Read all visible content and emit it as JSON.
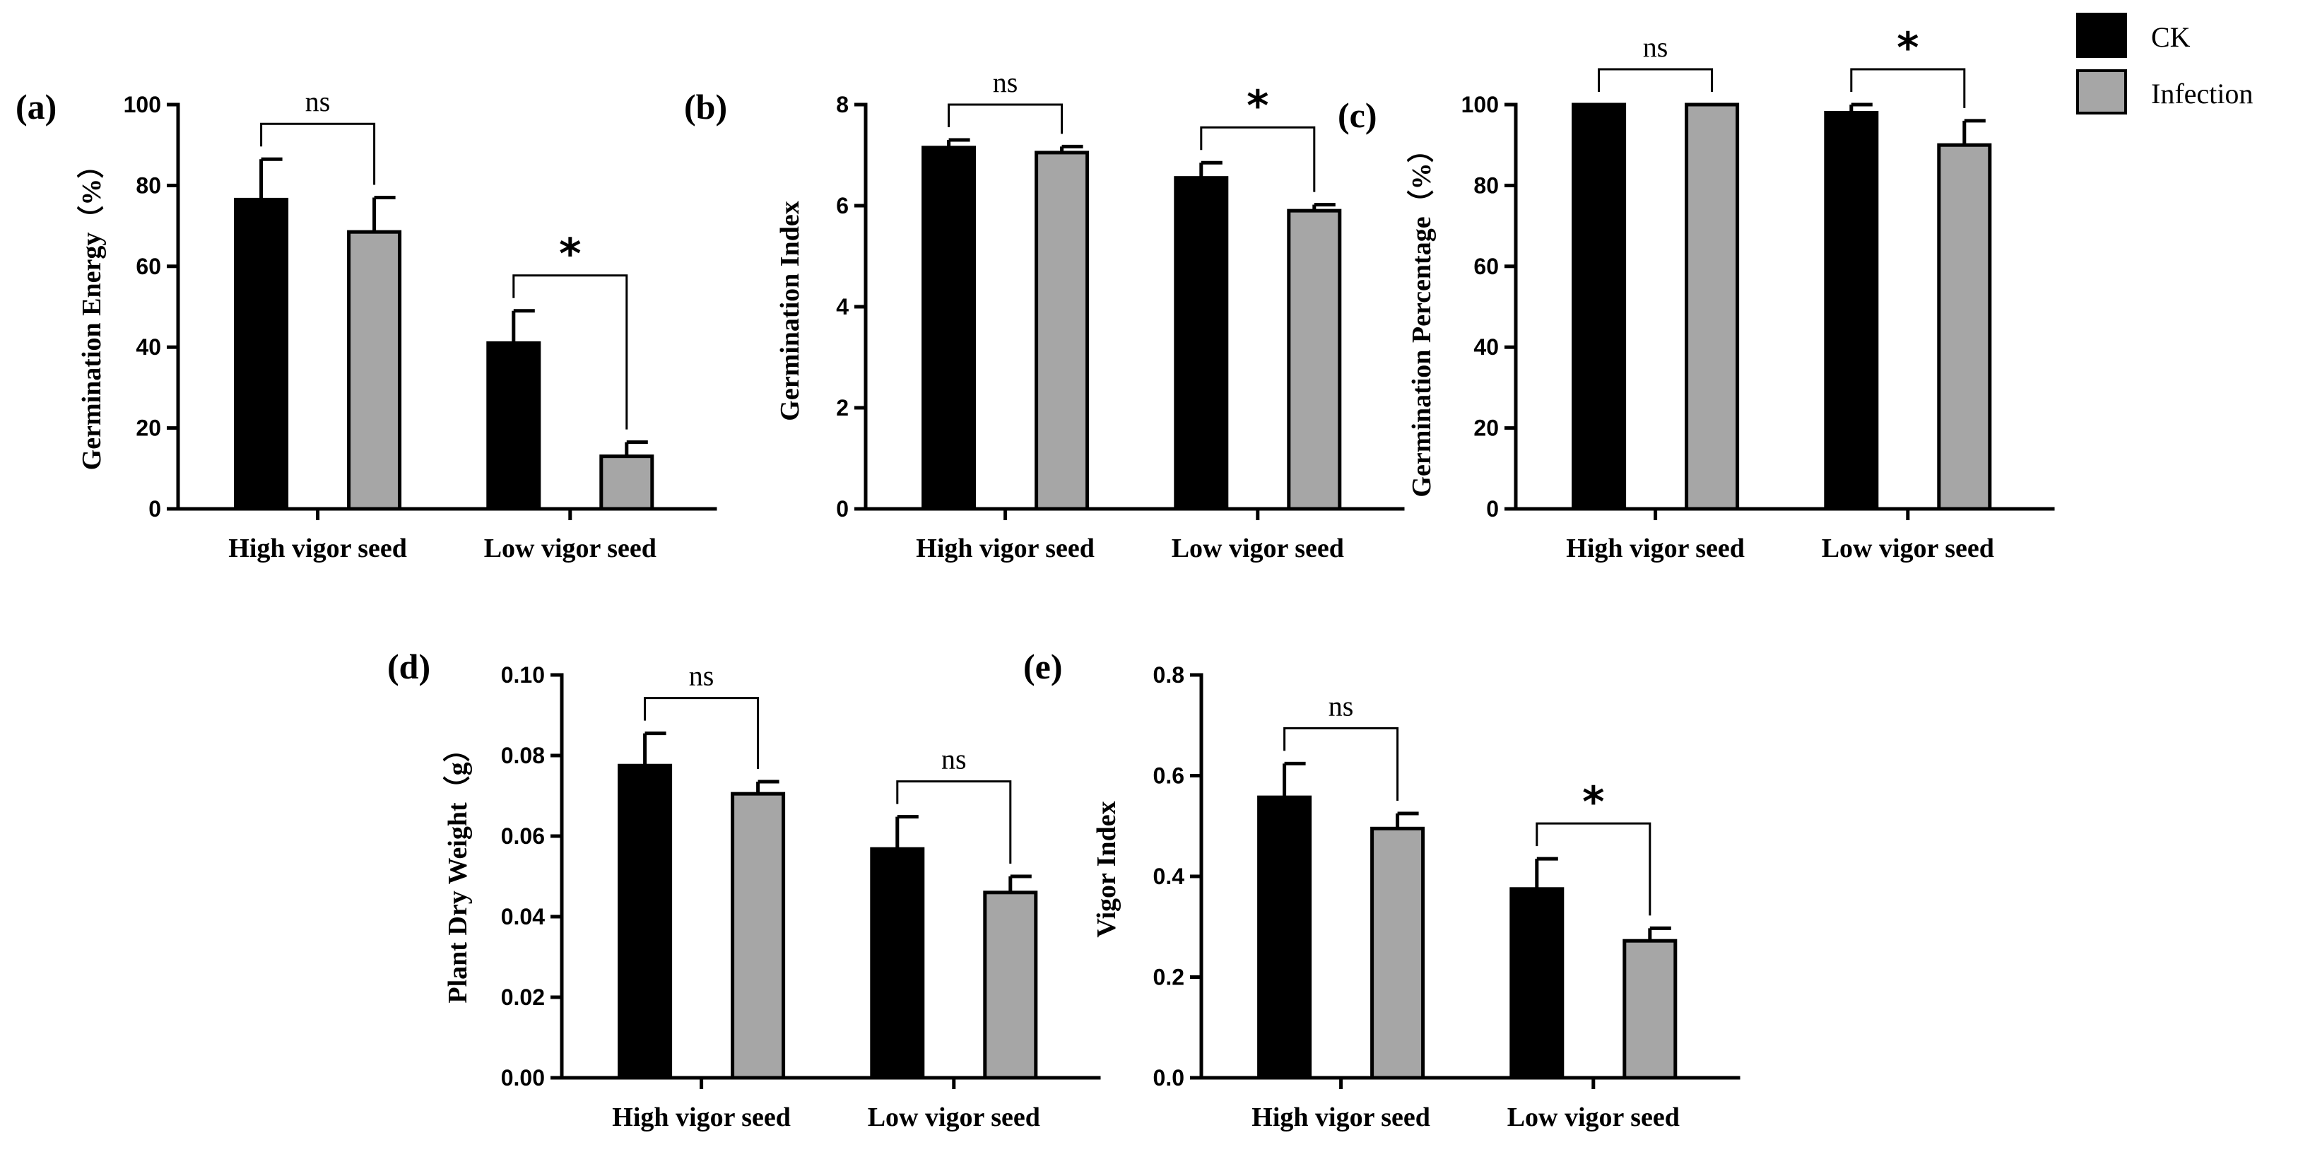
{
  "colors": {
    "ck": "#000000",
    "infection": "#a6a6a6",
    "axis": "#000000"
  },
  "legend": {
    "items": [
      {
        "label": "CK",
        "color": "#000000"
      },
      {
        "label": "Infection",
        "color": "#a6a6a6"
      }
    ]
  },
  "chart_data": [
    {
      "panel_label": "(a)",
      "type": "bar",
      "ylabel": "Germination Energy（%）",
      "categories": [
        "High vigor seed",
        "Low vigor seed"
      ],
      "ylim": [
        0,
        100
      ],
      "yticks": [
        "0",
        "20",
        "40",
        "60",
        "80",
        "100"
      ],
      "series": [
        {
          "name": "CK",
          "values": [
            76.5,
            41
          ],
          "errors": [
            10,
            8
          ]
        },
        {
          "name": "Infection",
          "values": [
            68.5,
            13
          ],
          "errors": [
            8.5,
            3.5
          ]
        }
      ],
      "significance": [
        "ns",
        "*"
      ]
    },
    {
      "panel_label": "(b)",
      "type": "bar",
      "ylabel": "Germination Index",
      "categories": [
        "High vigor seed",
        "Low vigor seed"
      ],
      "ylim": [
        0,
        8
      ],
      "yticks": [
        "0",
        "2",
        "4",
        "6",
        "8"
      ],
      "series": [
        {
          "name": "CK",
          "values": [
            7.15,
            6.55
          ],
          "errors": [
            0.15,
            0.3
          ]
        },
        {
          "name": "Infection",
          "values": [
            7.05,
            5.9
          ],
          "errors": [
            0.12,
            0.12
          ]
        }
      ],
      "significance": [
        "ns",
        "*"
      ]
    },
    {
      "panel_label": "(c)",
      "type": "bar",
      "ylabel": "Germination Percentage（%）",
      "categories": [
        "High vigor seed",
        "Low vigor seed"
      ],
      "ylim": [
        0,
        100
      ],
      "yticks": [
        "0",
        "20",
        "40",
        "60",
        "80",
        "100"
      ],
      "series": [
        {
          "name": "CK",
          "values": [
            100,
            98
          ],
          "errors": [
            0,
            2
          ]
        },
        {
          "name": "Infection",
          "values": [
            100,
            90
          ],
          "errors": [
            0,
            6
          ]
        }
      ],
      "significance": [
        "ns",
        "*"
      ]
    },
    {
      "panel_label": "(d)",
      "type": "bar",
      "ylabel": "Plant Dry Weight（g）",
      "categories": [
        "High vigor seed",
        "Low vigor seed"
      ],
      "ylim": [
        0,
        0.1
      ],
      "yticks": [
        "0.00",
        "0.02",
        "0.04",
        "0.06",
        "0.08",
        "0.10"
      ],
      "series": [
        {
          "name": "CK",
          "values": [
            0.0775,
            0.0568
          ],
          "errors": [
            0.008,
            0.008
          ]
        },
        {
          "name": "Infection",
          "values": [
            0.0705,
            0.046
          ],
          "errors": [
            0.003,
            0.004
          ]
        }
      ],
      "significance": [
        "ns",
        "ns"
      ]
    },
    {
      "panel_label": "(e)",
      "type": "bar",
      "ylabel": "Vigor Index",
      "categories": [
        "High vigor seed",
        "Low vigor seed"
      ],
      "ylim": [
        0,
        0.8
      ],
      "yticks": [
        "0.0",
        "0.2",
        "0.4",
        "0.6",
        "0.8"
      ],
      "series": [
        {
          "name": "CK",
          "values": [
            0.557,
            0.375
          ],
          "errors": [
            0.067,
            0.06
          ]
        },
        {
          "name": "Infection",
          "values": [
            0.495,
            0.272
          ],
          "errors": [
            0.03,
            0.025
          ]
        }
      ],
      "significance": [
        "ns",
        "*"
      ]
    }
  ]
}
